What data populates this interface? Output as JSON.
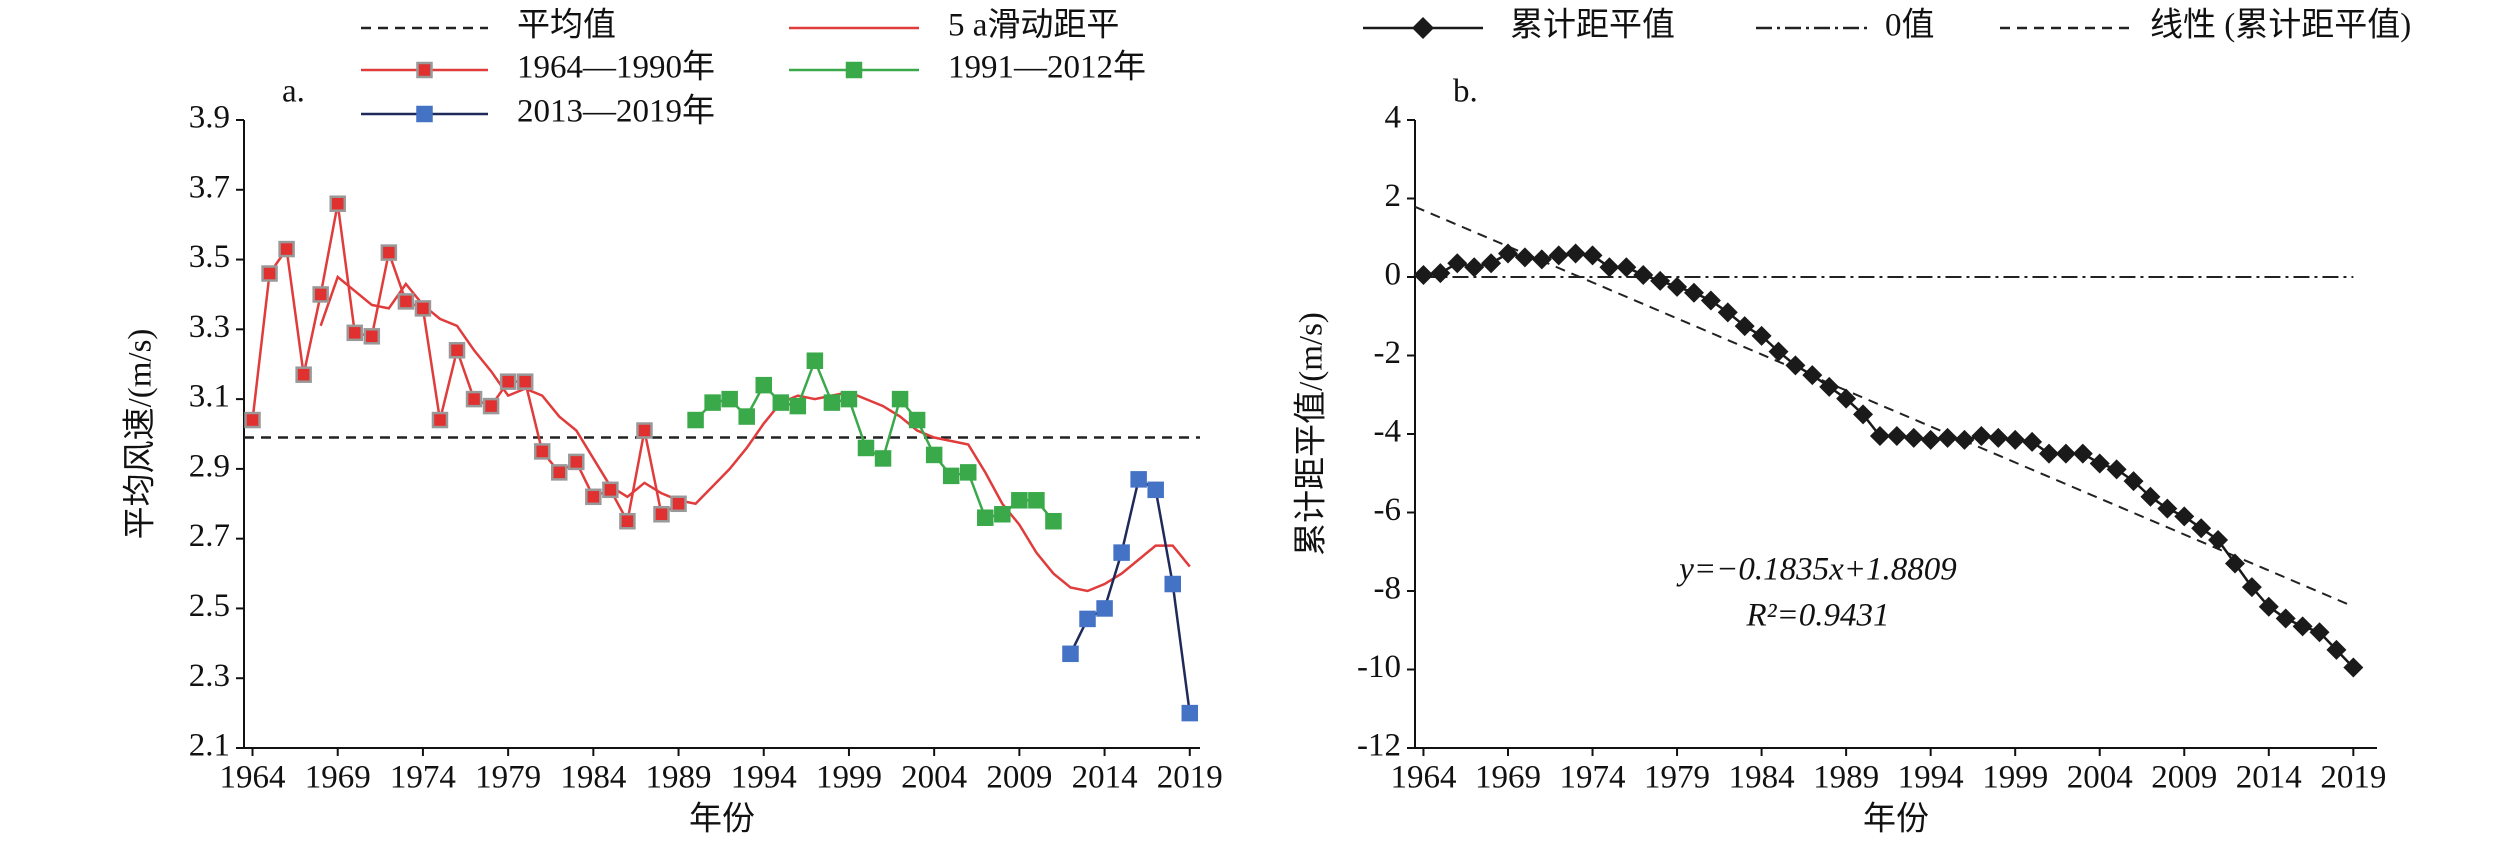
{
  "chart_data": [
    {
      "type": "line",
      "label": "a.",
      "xlabel": "年份",
      "ylabel": "平均风速/(m/s)",
      "xlim": [
        1963.5,
        2019.6
      ],
      "xticks": [
        1964,
        1969,
        1974,
        1979,
        1984,
        1989,
        1994,
        1999,
        2004,
        2009,
        2014,
        2019
      ],
      "ylim": [
        2.1,
        3.9
      ],
      "yticks": [
        2.1,
        2.3,
        2.5,
        2.7,
        2.9,
        3.1,
        3.3,
        3.5,
        3.7,
        3.9
      ],
      "mean": {
        "name": "平均值",
        "value": 2.99,
        "color": "#222222"
      },
      "moving": {
        "name": "5 a滑动距平",
        "color": "#e03c3c",
        "x": [
          1968,
          1969,
          1970,
          1971,
          1972,
          1973,
          1974,
          1975,
          1976,
          1977,
          1978,
          1979,
          1980,
          1981,
          1982,
          1983,
          1984,
          1985,
          1986,
          1987,
          1988,
          1989,
          1990,
          1991,
          1992,
          1993,
          1994,
          1995,
          1996,
          1997,
          1998,
          1999,
          2000,
          2001,
          2002,
          2003,
          2004,
          2005,
          2006,
          2007,
          2008,
          2009,
          2010,
          2011,
          2012,
          2013,
          2014,
          2015,
          2016,
          2017,
          2018,
          2019
        ],
        "values": [
          3.31,
          3.45,
          3.41,
          3.37,
          3.36,
          3.43,
          3.37,
          3.33,
          3.31,
          3.24,
          3.18,
          3.11,
          3.13,
          3.11,
          3.05,
          3.01,
          2.93,
          2.85,
          2.82,
          2.86,
          2.83,
          2.81,
          2.8,
          2.85,
          2.9,
          2.96,
          3.03,
          3.09,
          3.11,
          3.1,
          3.11,
          3.12,
          3.1,
          3.08,
          3.05,
          3.01,
          2.99,
          2.98,
          2.97,
          2.89,
          2.8,
          2.74,
          2.66,
          2.6,
          2.56,
          2.55,
          2.57,
          2.6,
          2.64,
          2.68,
          2.68,
          2.62
        ]
      },
      "series": [
        {
          "name": "1964—1990年",
          "color": "#e03c3c",
          "marker_color": "#e0302f",
          "marker_edge": "#999999",
          "x": [
            1964,
            1965,
            1966,
            1967,
            1968,
            1969,
            1970,
            1971,
            1972,
            1973,
            1974,
            1975,
            1976,
            1977,
            1978,
            1979,
            1980,
            1981,
            1982,
            1983,
            1984,
            1985,
            1986,
            1987,
            1988,
            1989
          ],
          "values": [
            3.04,
            3.46,
            3.53,
            3.17,
            3.4,
            3.66,
            3.29,
            3.28,
            3.52,
            3.38,
            3.36,
            3.04,
            3.24,
            3.1,
            3.08,
            3.15,
            3.15,
            2.95,
            2.89,
            2.92,
            2.82,
            2.84,
            2.75,
            3.01,
            2.77,
            2.8
          ]
        },
        {
          "name": "1991—2012年",
          "color": "#3aa94a",
          "marker_color": "#3aa94a",
          "marker_edge": "#3aa94a",
          "x": [
            1990,
            1991,
            1992,
            1993,
            1994,
            1995,
            1996,
            1997,
            1998,
            1999,
            2000,
            2001,
            2002,
            2003,
            2004,
            2005,
            2006,
            2007,
            2008,
            2009,
            2010,
            2011
          ],
          "values": [
            3.04,
            3.09,
            3.1,
            3.05,
            3.14,
            3.09,
            3.08,
            3.21,
            3.09,
            3.1,
            2.96,
            2.93,
            3.1,
            3.04,
            2.94,
            2.88,
            2.89,
            2.76,
            2.77,
            2.81,
            2.81,
            2.75
          ]
        },
        {
          "name": "2013—2019年",
          "color": "#1f2a5a",
          "marker_color": "#4472c4",
          "marker_edge": "#4472c4",
          "x": [
            2012,
            2013,
            2014,
            2015,
            2016,
            2017,
            2018,
            2019
          ],
          "values": [
            2.37,
            2.47,
            2.5,
            2.66,
            2.87,
            2.84,
            2.57,
            2.2
          ]
        }
      ]
    },
    {
      "type": "line",
      "label": "b.",
      "xlabel": "年份",
      "ylabel": "累计距平值/(m/s)",
      "xlim": [
        1963.5,
        2020.4
      ],
      "xticks": [
        1964,
        1969,
        1974,
        1979,
        1984,
        1989,
        1994,
        1999,
        2004,
        2009,
        2014,
        2019
      ],
      "ylim": [
        -12,
        4
      ],
      "yticks": [
        -12,
        -10,
        -8,
        -6,
        -4,
        -2,
        0,
        2,
        4
      ],
      "zero": {
        "name": "0值",
        "value": 0,
        "color": "#222222"
      },
      "trend": {
        "name": "线性 (累计距平值)",
        "slope": -0.1835,
        "intercept": 1.8809,
        "color": "#222222"
      },
      "annotations": [
        "y=−0.1835x+1.8809",
        "R²=0.9431"
      ],
      "series": [
        {
          "name": "累计距平值",
          "color": "#1a1a1a",
          "x": [
            1964,
            1965,
            1966,
            1967,
            1968,
            1969,
            1970,
            1971,
            1972,
            1973,
            1974,
            1975,
            1976,
            1977,
            1978,
            1979,
            1980,
            1981,
            1982,
            1983,
            1984,
            1985,
            1986,
            1987,
            1988,
            1989,
            1990,
            1991,
            1992,
            1993,
            1994,
            1995,
            1996,
            1997,
            1998,
            1999,
            2000,
            2001,
            2002,
            2003,
            2004,
            2005,
            2006,
            2007,
            2008,
            2009,
            2010,
            2011,
            2012,
            2013,
            2014,
            2015,
            2016,
            2017,
            2018,
            2019
          ],
          "values": [
            0.05,
            0.1,
            0.35,
            0.25,
            0.35,
            0.6,
            0.5,
            0.45,
            0.55,
            0.6,
            0.55,
            0.25,
            0.25,
            0.05,
            -0.1,
            -0.25,
            -0.4,
            -0.6,
            -0.9,
            -1.25,
            -1.5,
            -1.9,
            -2.25,
            -2.5,
            -2.8,
            -3.1,
            -3.5,
            -4.05,
            -4.05,
            -4.1,
            -4.15,
            -4.1,
            -4.15,
            -4.05,
            -4.1,
            -4.15,
            -4.2,
            -4.5,
            -4.5,
            -4.5,
            -4.75,
            -4.9,
            -5.2,
            -5.6,
            -5.9,
            -6.1,
            -6.4,
            -6.7,
            -7.3,
            -7.9,
            -8.4,
            -8.7,
            -8.9,
            -9.05,
            -9.5,
            -9.95
          ]
        }
      ]
    }
  ]
}
